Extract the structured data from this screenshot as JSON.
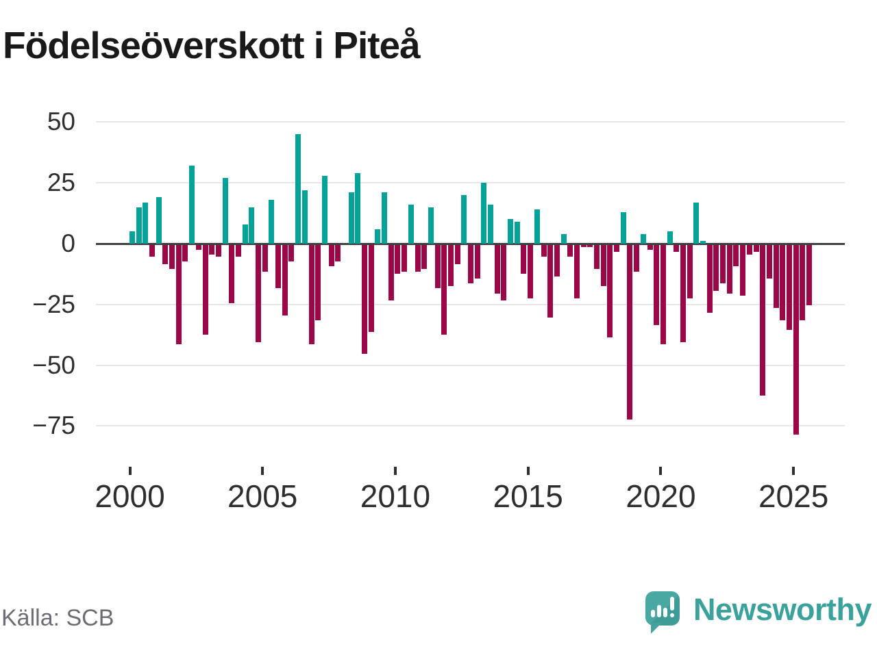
{
  "title": "Födelseöverskott i Piteå",
  "source": "Källa: SCB",
  "branding": {
    "name": "Newsworthy",
    "icon": "newsworthy-speech-bubble-bar-chart-icon"
  },
  "colors": {
    "positive_bar": "#05a29a",
    "negative_bar": "#9c0847",
    "zero_line": "#3e3e3e",
    "gridline": "#e7e7e7",
    "axis_text": "#2e2e2e",
    "source_text": "#6c6c75",
    "brand_teal": "#3aa29b"
  },
  "chart_data": {
    "type": "bar",
    "title": "Födelseöverskott i Piteå",
    "x_freq": "quarterly",
    "x_labels": [
      "2000Q1",
      "2000Q2",
      "2000Q3",
      "2000Q4",
      "2001Q1",
      "2001Q2",
      "2001Q3",
      "2001Q4",
      "2002Q1",
      "2002Q2",
      "2002Q3",
      "2002Q4",
      "2003Q1",
      "2003Q2",
      "2003Q3",
      "2003Q4",
      "2004Q1",
      "2004Q2",
      "2004Q3",
      "2004Q4",
      "2005Q1",
      "2005Q2",
      "2005Q3",
      "2005Q4",
      "2006Q1",
      "2006Q2",
      "2006Q3",
      "2006Q4",
      "2007Q1",
      "2007Q2",
      "2007Q3",
      "2007Q4",
      "2008Q1",
      "2008Q2",
      "2008Q3",
      "2008Q4",
      "2009Q1",
      "2009Q2",
      "2009Q3",
      "2009Q4",
      "2010Q1",
      "2010Q2",
      "2010Q3",
      "2010Q4",
      "2011Q1",
      "2011Q2",
      "2011Q3",
      "2011Q4",
      "2012Q1",
      "2012Q2",
      "2012Q3",
      "2012Q4",
      "2013Q1",
      "2013Q2",
      "2013Q3",
      "2013Q4",
      "2014Q1",
      "2014Q2",
      "2014Q3",
      "2014Q4",
      "2015Q1",
      "2015Q2",
      "2015Q3",
      "2015Q4",
      "2016Q1",
      "2016Q2",
      "2016Q3",
      "2016Q4",
      "2017Q1",
      "2017Q2",
      "2017Q3",
      "2017Q4",
      "2018Q1",
      "2018Q2",
      "2018Q3",
      "2018Q4",
      "2019Q1",
      "2019Q2",
      "2019Q3",
      "2019Q4",
      "2020Q1",
      "2020Q2",
      "2020Q3",
      "2020Q4",
      "2021Q1",
      "2021Q2",
      "2021Q3",
      "2021Q4",
      "2022Q1",
      "2022Q2",
      "2022Q3",
      "2022Q4",
      "2023Q1",
      "2023Q2",
      "2023Q3",
      "2023Q4",
      "2024Q1",
      "2024Q2",
      "2024Q3",
      "2024Q4",
      "2025Q1",
      "2025Q2",
      "2025Q3"
    ],
    "values": [
      5,
      15,
      17,
      -5,
      19,
      -8,
      -10,
      -41,
      -7,
      32,
      -2,
      -37,
      -4,
      -5,
      27,
      -24,
      -5,
      8,
      15,
      -40,
      -11,
      18,
      -18,
      -29,
      -7,
      45,
      22,
      -41,
      -31,
      28,
      -9,
      -7,
      0,
      21,
      29,
      -45,
      -36,
      6,
      21,
      -23,
      -12,
      -11,
      16,
      -11,
      -10,
      15,
      -18,
      -37,
      -17,
      -8,
      20,
      -16,
      -14,
      25,
      16,
      -20,
      -23,
      10,
      9,
      -12,
      -22,
      14,
      -5,
      -30,
      -13,
      4,
      -5,
      -22,
      -1,
      -1,
      -10,
      -17,
      -38,
      -3,
      13,
      -72,
      -11,
      4,
      -2,
      -33,
      -41,
      5,
      -3,
      -40,
      -22,
      17,
      1,
      -28,
      -19,
      -16,
      -20,
      -9,
      -21,
      -4,
      -3,
      -62,
      -14,
      -26,
      -31,
      -35,
      -78,
      -31,
      -25
    ],
    "yticks": [
      50,
      25,
      0,
      -25,
      -50,
      -75
    ],
    "xticks": [
      "2000",
      "2005",
      "2010",
      "2015",
      "2020",
      "2025"
    ],
    "ylim": [
      -80,
      50
    ],
    "grid": true,
    "legend": false,
    "xlabel": "",
    "ylabel": ""
  }
}
